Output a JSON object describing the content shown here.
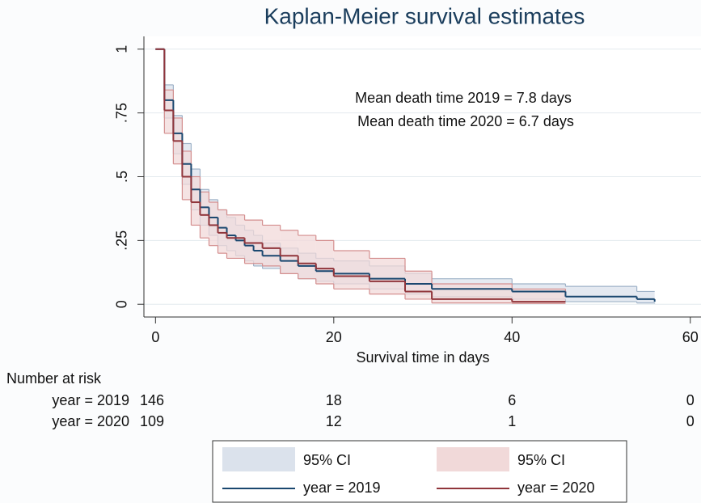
{
  "chart_data": {
    "type": "km-step",
    "title": "Kaplan-Meier survival estimates",
    "x_label": "Survival time in days",
    "annotations": [
      "Mean death time 2019 = 7.8 days",
      "Mean death time 2020 = 6.7 days"
    ],
    "xlim": [
      -1.3,
      61.2
    ],
    "xticks": [
      0,
      20,
      40,
      60
    ],
    "ylim": [
      -0.05,
      1.05
    ],
    "yticks": [
      0,
      {
        "value": 0.25,
        "label": ".25"
      },
      {
        "value": 0.5,
        "label": ".5"
      },
      {
        "value": 0.75,
        "label": ".75"
      },
      1
    ],
    "grid": true,
    "series": [
      {
        "name": "year = 2019",
        "color": "#1a476f",
        "ci_name": "95% CI",
        "ci_color": "#dbe2ec",
        "ci_edge": "#9fb3c8",
        "x": [
          0,
          1,
          2,
          3,
          4,
          5,
          6,
          7,
          8,
          9,
          10,
          11,
          12,
          14,
          16,
          18,
          20,
          24,
          28,
          31,
          40,
          46,
          54,
          56
        ],
        "values": [
          1,
          0.8,
          0.67,
          0.55,
          0.45,
          0.38,
          0.34,
          0.3,
          0.27,
          0.25,
          0.23,
          0.21,
          0.19,
          0.17,
          0.15,
          0.13,
          0.12,
          0.1,
          0.08,
          0.06,
          0.05,
          0.03,
          0.02,
          0.01
        ],
        "upper": [
          1,
          0.86,
          0.74,
          0.63,
          0.53,
          0.45,
          0.41,
          0.37,
          0.34,
          0.31,
          0.29,
          0.27,
          0.24,
          0.22,
          0.2,
          0.18,
          0.17,
          0.15,
          0.12,
          0.1,
          0.08,
          0.07,
          0.05,
          0.05
        ],
        "lower": [
          1,
          0.73,
          0.59,
          0.47,
          0.37,
          0.31,
          0.27,
          0.23,
          0.21,
          0.19,
          0.17,
          0.15,
          0.14,
          0.12,
          0.1,
          0.09,
          0.08,
          0.06,
          0.04,
          0.03,
          0.02,
          0.01,
          0.005,
          0.003
        ]
      },
      {
        "name": "year = 2020",
        "color": "#90353b",
        "ci_name": "95% CI",
        "ci_color": "#f1d9d9",
        "ci_edge": "#d48f8f",
        "x": [
          0,
          1,
          2,
          3,
          4,
          5,
          6,
          7,
          8,
          10,
          12,
          14,
          16,
          18,
          20,
          24,
          28,
          31,
          40,
          46
        ],
        "values": [
          1,
          0.76,
          0.64,
          0.5,
          0.4,
          0.35,
          0.31,
          0.28,
          0.26,
          0.24,
          0.22,
          0.19,
          0.16,
          0.14,
          0.11,
          0.09,
          0.05,
          0.02,
          0.01,
          0.01
        ],
        "upper": [
          1,
          0.84,
          0.73,
          0.6,
          0.5,
          0.44,
          0.4,
          0.37,
          0.35,
          0.33,
          0.31,
          0.29,
          0.27,
          0.25,
          0.21,
          0.18,
          0.13,
          0.08,
          0.06,
          0.05
        ],
        "lower": [
          1,
          0.67,
          0.55,
          0.41,
          0.31,
          0.26,
          0.23,
          0.2,
          0.18,
          0.16,
          0.15,
          0.12,
          0.1,
          0.08,
          0.06,
          0.04,
          0.02,
          0.005,
          0.003,
          0.003
        ]
      }
    ],
    "risk_table": {
      "title": "Number at risk",
      "rows": [
        {
          "label": "year = 2019",
          "counts": [
            146,
            18,
            6,
            0
          ]
        },
        {
          "label": "year = 2020",
          "counts": [
            109,
            12,
            1,
            0
          ]
        }
      ]
    }
  }
}
